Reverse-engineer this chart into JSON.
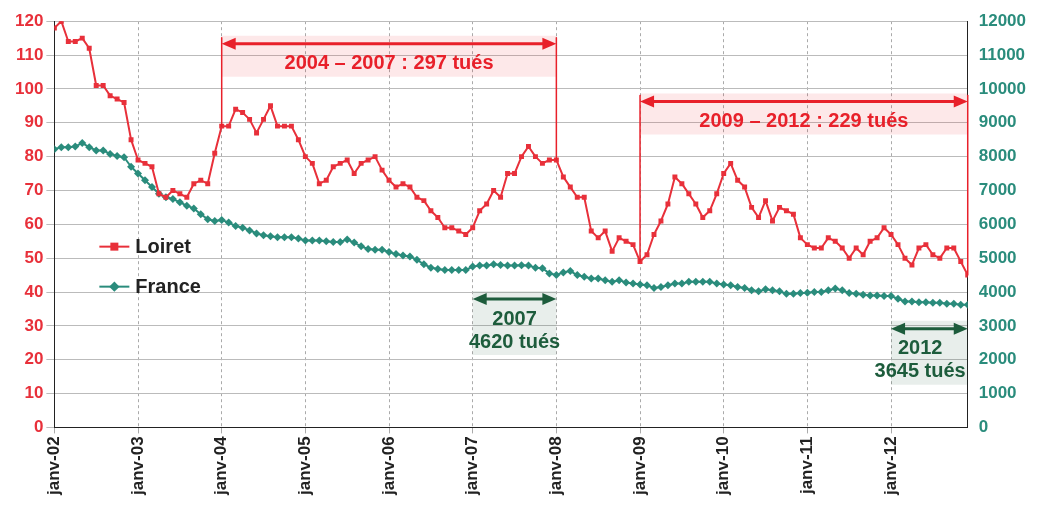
{
  "chart_data": {
    "type": "line",
    "x": [
      "2002-01",
      "2002-02",
      "2002-03",
      "2002-04",
      "2002-05",
      "2002-06",
      "2002-07",
      "2002-08",
      "2002-09",
      "2002-10",
      "2002-11",
      "2002-12",
      "2003-01",
      "2003-02",
      "2003-03",
      "2003-04",
      "2003-05",
      "2003-06",
      "2003-07",
      "2003-08",
      "2003-09",
      "2003-10",
      "2003-11",
      "2003-12",
      "2004-01",
      "2004-02",
      "2004-03",
      "2004-04",
      "2004-05",
      "2004-06",
      "2004-07",
      "2004-08",
      "2004-09",
      "2004-10",
      "2004-11",
      "2004-12",
      "2005-01",
      "2005-02",
      "2005-03",
      "2005-04",
      "2005-05",
      "2005-06",
      "2005-07",
      "2005-08",
      "2005-09",
      "2005-10",
      "2005-11",
      "2005-12",
      "2006-01",
      "2006-02",
      "2006-03",
      "2006-04",
      "2006-05",
      "2006-06",
      "2006-07",
      "2006-08",
      "2006-09",
      "2006-10",
      "2006-11",
      "2006-12",
      "2007-01",
      "2007-02",
      "2007-03",
      "2007-04",
      "2007-05",
      "2007-06",
      "2007-07",
      "2007-08",
      "2007-09",
      "2007-10",
      "2007-11",
      "2007-12",
      "2008-01",
      "2008-02",
      "2008-03",
      "2008-04",
      "2008-05",
      "2008-06",
      "2008-07",
      "2008-08",
      "2008-09",
      "2008-10",
      "2008-11",
      "2008-12",
      "2009-01",
      "2009-02",
      "2009-03",
      "2009-04",
      "2009-05",
      "2009-06",
      "2009-07",
      "2009-08",
      "2009-09",
      "2009-10",
      "2009-11",
      "2009-12",
      "2010-01",
      "2010-02",
      "2010-03",
      "2010-04",
      "2010-05",
      "2010-06",
      "2010-07",
      "2010-08",
      "2010-09",
      "2010-10",
      "2010-11",
      "2010-12",
      "2011-01",
      "2011-02",
      "2011-03",
      "2011-04",
      "2011-05",
      "2011-06",
      "2011-07",
      "2011-08",
      "2011-09",
      "2011-10",
      "2011-11",
      "2011-12",
      "2012-01",
      "2012-02",
      "2012-03",
      "2012-04",
      "2012-05",
      "2012-06",
      "2012-07",
      "2012-08",
      "2012-09",
      "2012-10",
      "2012-11",
      "2012-12"
    ],
    "series": [
      {
        "name": "Loiret",
        "color": "#e8303a",
        "marker": "square",
        "values": [
          118,
          120,
          114,
          114,
          115,
          112,
          101,
          101,
          98,
          97,
          96,
          85,
          79,
          78,
          77,
          69,
          68,
          70,
          69,
          68,
          72,
          73,
          72,
          81,
          89,
          89,
          94,
          93,
          91,
          87,
          91,
          95,
          89,
          89,
          89,
          85,
          80,
          78,
          72,
          73,
          77,
          78,
          79,
          75,
          78,
          79,
          80,
          76,
          73,
          71,
          72,
          71,
          68,
          67,
          64,
          62,
          59,
          59,
          58,
          57,
          59,
          64,
          66,
          70,
          68,
          75,
          75,
          80,
          83,
          80,
          78,
          79,
          79,
          74,
          71,
          68,
          68,
          58,
          56,
          58,
          52,
          56,
          55,
          54,
          49,
          51,
          57,
          61,
          66,
          74,
          72,
          69,
          66,
          62,
          64,
          69,
          75,
          78,
          73,
          71,
          65,
          62,
          67,
          61,
          65,
          64,
          63,
          56,
          54,
          53,
          53,
          56,
          55,
          53,
          50,
          53,
          51,
          55,
          56,
          59,
          57,
          54,
          50,
          48,
          53,
          54,
          51,
          50,
          53,
          53,
          49,
          45
        ]
      },
      {
        "name": "France",
        "color": "#2a8c7c",
        "marker": "diamond",
        "axis": "y2",
        "values": [
          8220,
          8280,
          8280,
          8300,
          8400,
          8280,
          8180,
          8180,
          8080,
          8020,
          7980,
          7700,
          7500,
          7300,
          7100,
          6900,
          6800,
          6750,
          6650,
          6550,
          6470,
          6300,
          6150,
          6100,
          6130,
          6050,
          5950,
          5900,
          5820,
          5730,
          5680,
          5650,
          5620,
          5620,
          5620,
          5580,
          5520,
          5520,
          5520,
          5500,
          5480,
          5480,
          5550,
          5460,
          5350,
          5270,
          5250,
          5250,
          5180,
          5120,
          5080,
          5050,
          4950,
          4820,
          4720,
          4680,
          4650,
          4650,
          4650,
          4650,
          4750,
          4780,
          4780,
          4820,
          4800,
          4780,
          4780,
          4790,
          4780,
          4720,
          4700,
          4550,
          4500,
          4580,
          4620,
          4500,
          4450,
          4400,
          4400,
          4350,
          4300,
          4350,
          4280,
          4250,
          4220,
          4200,
          4120,
          4150,
          4200,
          4250,
          4250,
          4300,
          4300,
          4300,
          4300,
          4250,
          4220,
          4200,
          4150,
          4120,
          4050,
          4020,
          4080,
          4050,
          4020,
          3950,
          3950,
          3970,
          3980,
          4000,
          4000,
          4050,
          4100,
          4050,
          3970,
          3950,
          3920,
          3900,
          3900,
          3880,
          3880,
          3800,
          3720,
          3720,
          3700,
          3700,
          3680,
          3680,
          3650,
          3650,
          3620,
          3620
        ]
      }
    ],
    "xlim": [
      "2002-01",
      "2012-12"
    ],
    "xticks": [
      {
        "value": "2002-01",
        "label": "janv-02"
      },
      {
        "value": "2003-01",
        "label": "janv-03"
      },
      {
        "value": "2004-01",
        "label": "janv-04"
      },
      {
        "value": "2005-01",
        "label": "janv-05"
      },
      {
        "value": "2006-01",
        "label": "janv-06"
      },
      {
        "value": "2007-01",
        "label": "janv-07"
      },
      {
        "value": "2008-01",
        "label": "janv-08"
      },
      {
        "value": "2009-01",
        "label": "janv-09"
      },
      {
        "value": "2010-01",
        "label": "janv-10"
      },
      {
        "value": "2011-01",
        "label": "janv-11"
      },
      {
        "value": "2012-01",
        "label": "janv-12"
      }
    ],
    "ylim": [
      0,
      120
    ],
    "yticks": [
      0,
      10,
      20,
      30,
      40,
      50,
      60,
      70,
      80,
      90,
      100,
      110,
      120
    ],
    "y2lim": [
      0,
      12000
    ],
    "y2ticks": [
      0,
      1000,
      2000,
      3000,
      4000,
      5000,
      6000,
      7000,
      8000,
      9000,
      10000,
      11000,
      12000
    ],
    "bands": [
      {
        "axis": "x",
        "from": "2004-01",
        "to": "2008-01",
        "label": "2004 – 2007 : 297 tués",
        "color": "#e8202a"
      },
      {
        "axis": "x",
        "from": "2009-01",
        "to": "2012-12",
        "label": "2009 – 2012 : 229 tués",
        "color": "#e8202a"
      },
      {
        "axis": "x",
        "from": "2007-01",
        "to": "2008-01",
        "label": "2007\n4620 tués",
        "color": "#1d5c3c"
      },
      {
        "axis": "x",
        "from": "2012-01",
        "to": "2012-12",
        "label": "2012\n3645 tués",
        "color": "#1d5c3c"
      }
    ],
    "grid": true,
    "legend": "left",
    "line_style": "solid"
  }
}
